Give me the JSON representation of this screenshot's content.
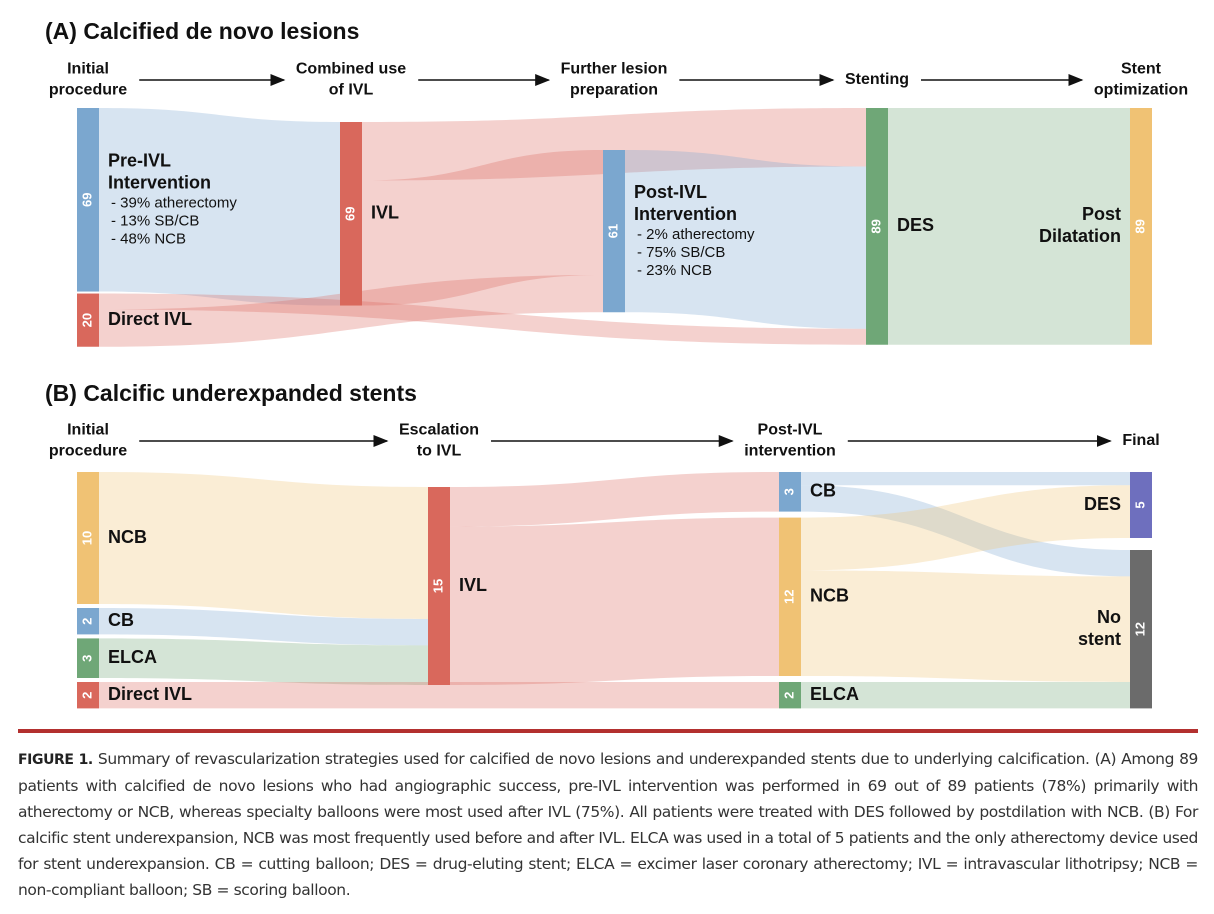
{
  "panels": [
    {
      "title": "(A) Calcified de novo lesions",
      "columns": [
        {
          "header": [
            "Initial",
            "procedure"
          ],
          "nodes": [
            {
              "label": [
                "Pre-IVL",
                "Intervention"
              ],
              "details": [
                "- 39% atherectomy",
                "- 13% SB/CB",
                "- 48% NCB"
              ],
              "value": 69,
              "color": "#7ba7cf"
            },
            {
              "label": [
                "Direct IVL"
              ],
              "value": 20,
              "color": "#d9685c"
            }
          ]
        },
        {
          "header": [
            "Combined use",
            "of IVL"
          ],
          "nodes": [
            {
              "label": [
                "IVL"
              ],
              "value": 69,
              "color": "#d9685c"
            }
          ]
        },
        {
          "header": [
            "Further lesion",
            "preparation"
          ],
          "nodes": [
            {
              "label": [
                "Post-IVL",
                "Intervention"
              ],
              "details": [
                "- 2% atherectomy",
                "- 75% SB/CB",
                "- 23% NCB"
              ],
              "value": 61,
              "color": "#7ba7cf"
            }
          ]
        },
        {
          "header": [
            "Stenting"
          ],
          "nodes": [
            {
              "label": [
                "DES"
              ],
              "value": 89,
              "color": "#6fa777"
            }
          ]
        },
        {
          "header": [
            "Stent",
            "optimization"
          ],
          "nodes": [
            {
              "label": [
                "Post",
                "Dilatation"
              ],
              "value": 89,
              "color": "#f0c274"
            }
          ]
        }
      ],
      "links": [
        {
          "source": [
            0,
            0
          ],
          "target": [
            1,
            0
          ],
          "value": 69
        },
        {
          "source": [
            1,
            0
          ],
          "target": [
            2,
            0
          ],
          "value": 47
        },
        {
          "source": [
            1,
            0
          ],
          "target": [
            3,
            0
          ],
          "value": 22
        },
        {
          "source": [
            0,
            1
          ],
          "target": [
            2,
            0
          ],
          "value": 14
        },
        {
          "source": [
            0,
            1
          ],
          "target": [
            3,
            0
          ],
          "value": 6
        },
        {
          "source": [
            2,
            0
          ],
          "target": [
            3,
            0
          ],
          "value": 61
        },
        {
          "source": [
            3,
            0
          ],
          "target": [
            4,
            0
          ],
          "value": 89
        }
      ]
    },
    {
      "title": "(B) Calcific underexpanded stents",
      "columns": [
        {
          "header": [
            "Initial",
            "procedure"
          ],
          "nodes": [
            {
              "label": [
                "NCB"
              ],
              "value": 10,
              "color": "#f0c274"
            },
            {
              "label": [
                "CB"
              ],
              "value": 2,
              "color": "#7ba7cf"
            },
            {
              "label": [
                "ELCA"
              ],
              "value": 3,
              "color": "#6fa777"
            },
            {
              "label": [
                "Direct IVL"
              ],
              "value": 2,
              "color": "#d9685c"
            }
          ]
        },
        {
          "header": [
            "Escalation",
            "to IVL"
          ],
          "nodes": [
            {
              "label": [
                "IVL"
              ],
              "value": 15,
              "color": "#d9685c"
            }
          ]
        },
        {
          "header": [
            "Post-IVL",
            "intervention"
          ],
          "nodes": [
            {
              "label": [
                "CB"
              ],
              "value": 3,
              "color": "#7ba7cf"
            },
            {
              "label": [
                "NCB"
              ],
              "value": 12,
              "color": "#f0c274"
            },
            {
              "label": [
                "ELCA"
              ],
              "value": 2,
              "color": "#6fa777"
            }
          ]
        },
        {
          "header": [
            "Final"
          ],
          "nodes": [
            {
              "label": [
                "DES"
              ],
              "value": 5,
              "color": "#6e6fbe"
            },
            {
              "label": [
                "No",
                "stent"
              ],
              "value": 12,
              "color": "#6b6b6b"
            }
          ]
        }
      ],
      "links": [
        {
          "source": [
            0,
            0
          ],
          "target": [
            1,
            0
          ],
          "value": 10
        },
        {
          "source": [
            0,
            1
          ],
          "target": [
            1,
            0
          ],
          "value": 2
        },
        {
          "source": [
            0,
            2
          ],
          "target": [
            1,
            0
          ],
          "value": 3
        },
        {
          "source": [
            0,
            3
          ],
          "target": [
            2,
            2
          ],
          "value": 2
        },
        {
          "source": [
            1,
            0
          ],
          "target": [
            2,
            0
          ],
          "value": 3
        },
        {
          "source": [
            1,
            0
          ],
          "target": [
            2,
            1
          ],
          "value": 12
        },
        {
          "source": [
            2,
            0
          ],
          "target": [
            3,
            0
          ],
          "value": 1
        },
        {
          "source": [
            2,
            0
          ],
          "target": [
            3,
            1
          ],
          "value": 2
        },
        {
          "source": [
            2,
            1
          ],
          "target": [
            3,
            0
          ],
          "value": 4
        },
        {
          "source": [
            2,
            1
          ],
          "target": [
            3,
            1
          ],
          "value": 8
        },
        {
          "source": [
            2,
            2
          ],
          "target": [
            3,
            1
          ],
          "value": 2
        }
      ]
    }
  ],
  "caption": {
    "label": "FIGURE 1.",
    "text": "Summary of revascularization strategies used for calcified de novo lesions and underexpanded stents due to underlying calcification. (A) Among 89 patients with calcified de novo lesions who had angiographic success, pre-IVL intervention was performed in 69 out of 89 patients (78%) primarily with atherectomy or NCB, whereas specialty balloons were most used after IVL (75%). All patients were treated with DES followed by postdilation with NCB. (B) For calcific stent underexpansion, NCB was most frequently used before and after IVL. ELCA was used in a total of 5 patients and the only atherectomy device used for stent underexpansion. CB = cutting balloon; DES = drug-eluting stent; ELCA = excimer laser coronary atherectomy; IVL = intravascular lithotripsy; NCB = non-compliant balloon; SB = scoring balloon."
  }
}
